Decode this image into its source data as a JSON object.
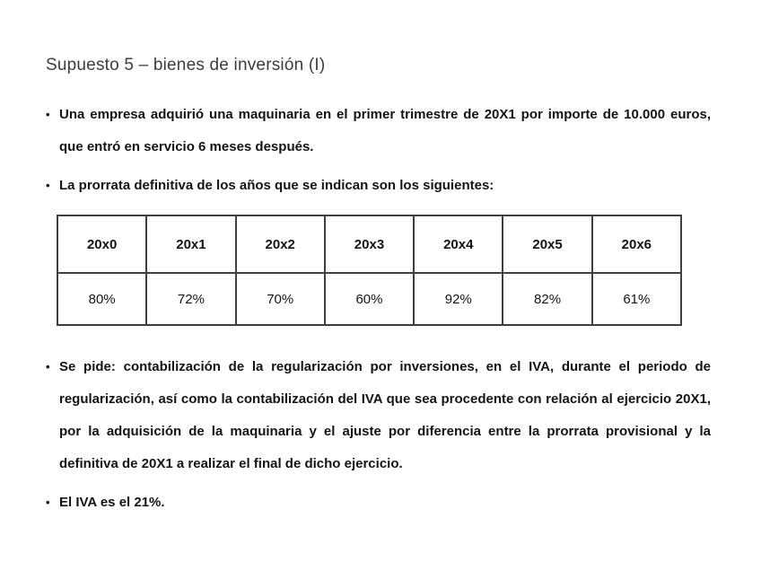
{
  "slide": {
    "title": "Supuesto 5 – bienes de inversión (I)",
    "bullet_glyph": "•",
    "bullets_before_table": [
      "Una empresa adquirió una maquinaria en el primer trimestre de 20X1 por importe de 10.000 euros, que entró en servicio 6 meses después.",
      "La prorrata definitiva de los años que se indican son los siguientes:"
    ],
    "table": {
      "headers": [
        "20x0",
        "20x1",
        "20x2",
        "20x3",
        "20x4",
        "20x5",
        "20x6"
      ],
      "values": [
        "80%",
        "72%",
        "70%",
        "60%",
        "92%",
        "82%",
        "61%"
      ]
    },
    "bullets_after_table": [
      "Se pide: contabilización de la regularización por inversiones, en el IVA, durante el periodo de regularización, así como la contabilización del IVA que sea procedente con relación al ejercicio 20X1, por la adquisición de la maquinaria y el ajuste por diferencia entre la prorrata provisional y la definitiva de 20X1 a realizar el final de dicho ejercicio.",
      "El IVA es el 21%."
    ],
    "colors": {
      "background": "#ffffff",
      "title_text": "#3d3d3d",
      "body_text": "#141414",
      "table_border": "#3f3f3f"
    }
  }
}
